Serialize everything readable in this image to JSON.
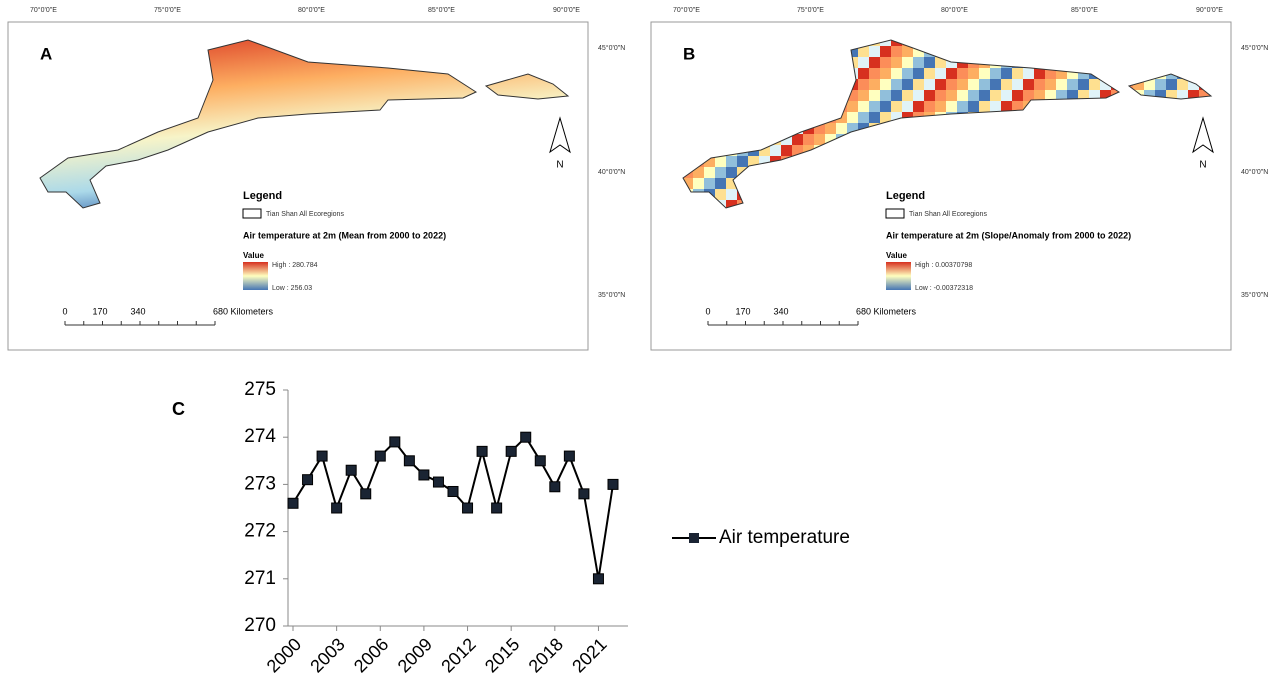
{
  "map_panels": [
    {
      "label": "A",
      "legend_title": "Legend",
      "layer": "Tian Shan All Ecoregions",
      "variable": "Air temperature at 2m (Mean from 2000 to 2022)",
      "value_heading": "Value",
      "high": "High : 280.784",
      "low": "Low : 256.03"
    },
    {
      "label": "B",
      "legend_title": "Legend",
      "layer": "Tian Shan All Ecoregions",
      "variable": "Air temperature at 2m (Slope/Anomaly from 2000 to 2022)",
      "value_heading": "Value",
      "high": "High : 0.00370798",
      "low": "Low : -0.00372318"
    }
  ],
  "map_axes": {
    "lon_labels": [
      "70°0'0\"E",
      "75°0'0\"E",
      "80°0'0\"E",
      "85°0'0\"E",
      "90°0'0\"E"
    ],
    "lat_labels": [
      "45°0'0\"N",
      "40°0'0\"N",
      "35°0'0\"N"
    ],
    "scale_labels": [
      "0",
      "170",
      "340",
      "680 Kilometers"
    ],
    "north": "N"
  },
  "chart_data": {
    "type": "line",
    "panel_label": "C",
    "x": [
      2000,
      2001,
      2002,
      2003,
      2004,
      2005,
      2006,
      2007,
      2008,
      2009,
      2010,
      2011,
      2012,
      2013,
      2014,
      2015,
      2016,
      2017,
      2018,
      2019,
      2020,
      2021,
      2022
    ],
    "xlim": [
      2000,
      2022
    ],
    "xticks": [
      2000,
      2003,
      2006,
      2009,
      2012,
      2015,
      2018,
      2021
    ],
    "ylim": [
      270,
      275
    ],
    "yticks": [
      270,
      271,
      272,
      273,
      274,
      275
    ],
    "series": [
      {
        "name": "Air temperature",
        "color": "#000000",
        "values": [
          272.6,
          273.1,
          273.6,
          272.5,
          273.3,
          272.8,
          273.6,
          273.9,
          273.5,
          273.2,
          273.05,
          272.85,
          272.5,
          273.7,
          272.5,
          273.7,
          274.0,
          273.5,
          272.95,
          273.6,
          272.8,
          271.0,
          273.0
        ]
      }
    ]
  }
}
